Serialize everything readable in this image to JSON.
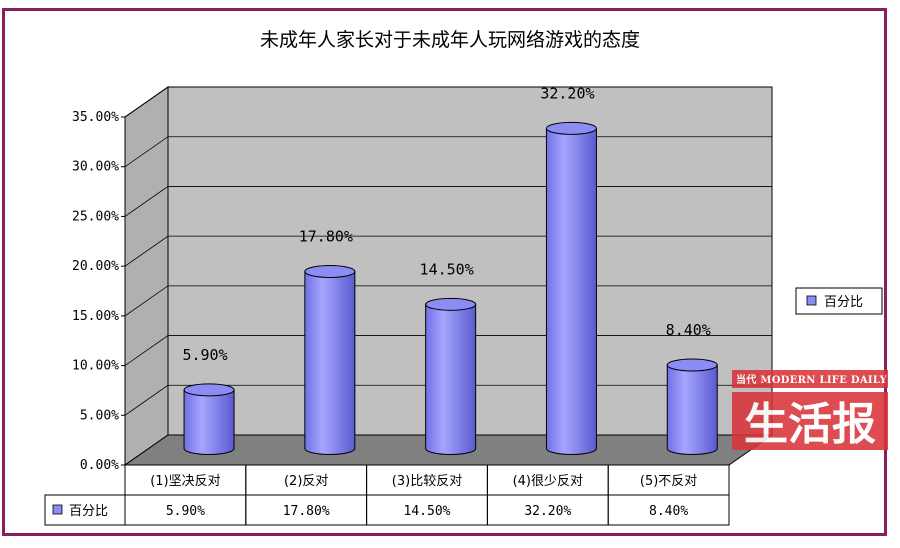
{
  "chart_data": {
    "type": "bar",
    "title": "未成年人家长对于未成年人玩网络游戏的态度",
    "categories": [
      "(1)坚决反对",
      "(2)反对",
      "(3)比较反对",
      "(4)很少反对",
      "(5)不反对"
    ],
    "series": [
      {
        "name": "百分比",
        "values": [
          5.9,
          17.8,
          14.5,
          32.2,
          8.4
        ],
        "color": "#8c8cf5"
      }
    ],
    "data_labels": [
      "5.90%",
      "17.80%",
      "14.50%",
      "32.20%",
      "8.40%"
    ],
    "y_ticks": [
      "0.00%",
      "5.00%",
      "10.00%",
      "15.00%",
      "20.00%",
      "25.00%",
      "30.00%",
      "35.00%"
    ],
    "ylim": [
      0,
      35
    ],
    "bar_shape": "3d-cylinder",
    "grid": true,
    "legend_position": "right",
    "data_table": true
  },
  "watermark": {
    "sub": "当代 MODERN LIFE DAILY",
    "main": "生活报"
  },
  "colors": {
    "border": "#8a1f5c",
    "wall": "#c0c0c0",
    "floor": "#808080",
    "bar": "#8c8cf5",
    "watermark": "#d9343a"
  }
}
